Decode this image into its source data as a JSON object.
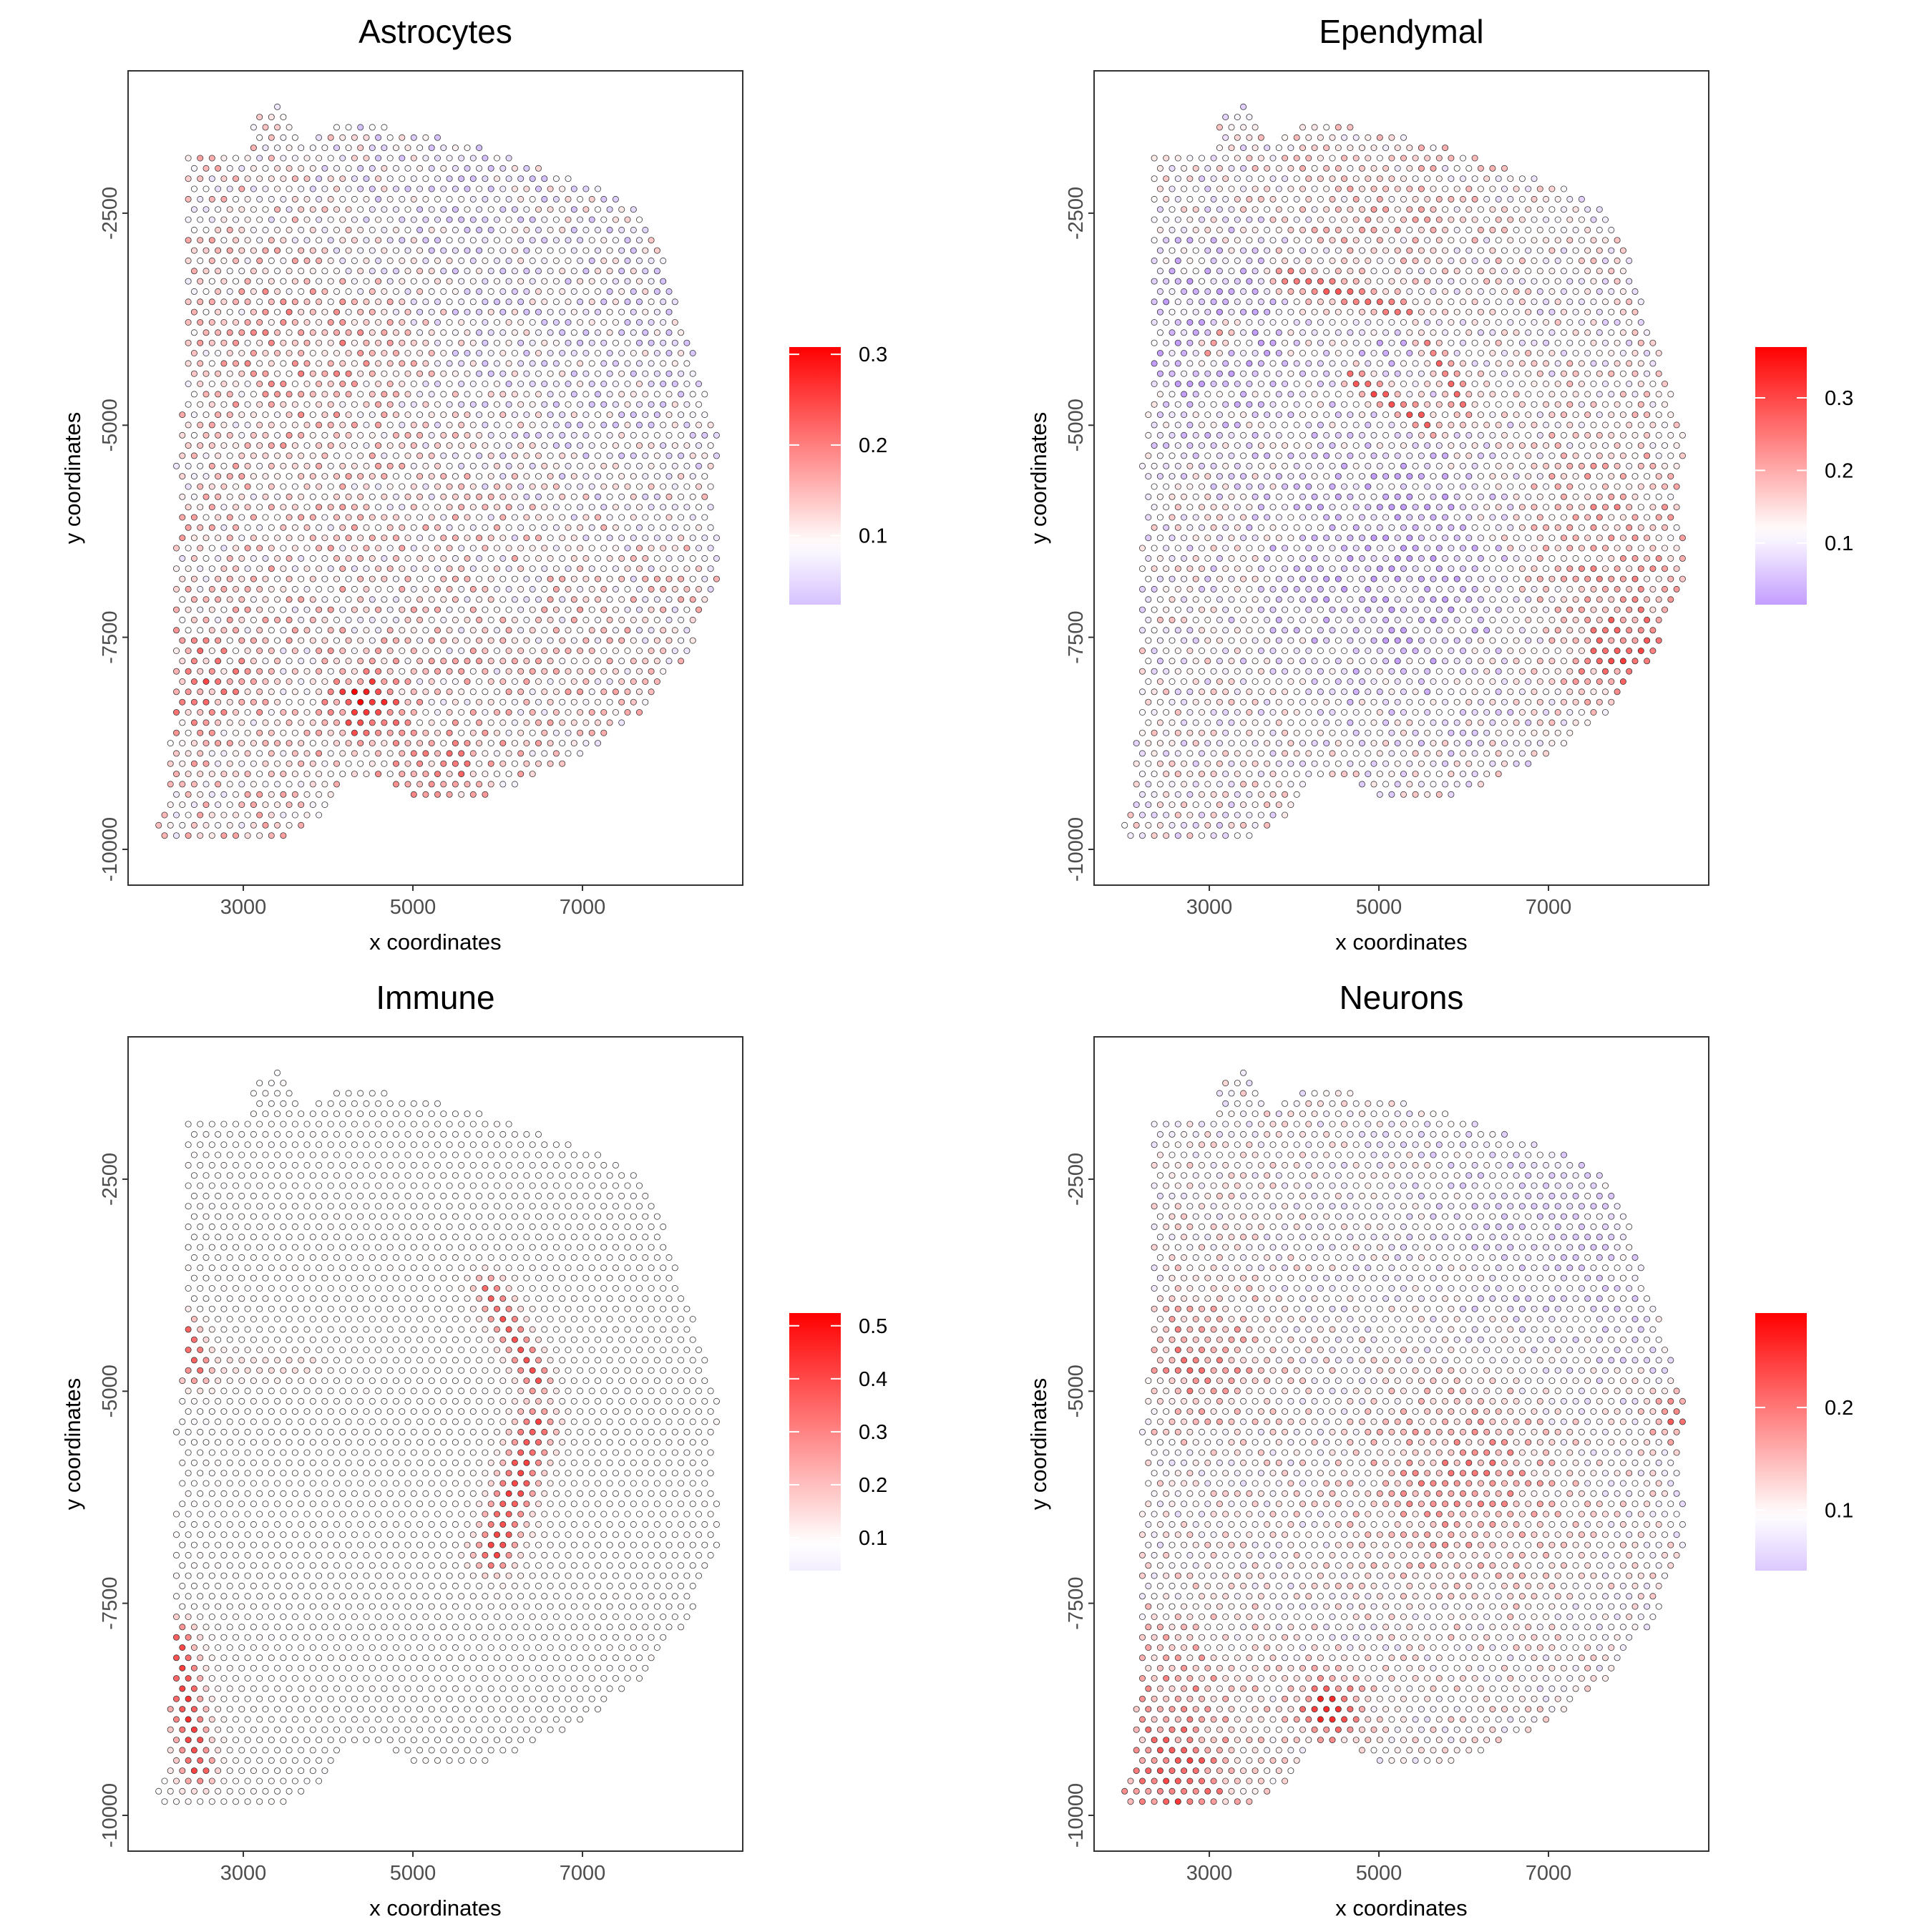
{
  "chart_data": {
    "type": "scatter",
    "shared": {
      "xlabel": "x coordinates",
      "ylabel": "y coordinates",
      "xlim": [
        1641,
        8890
      ],
      "ylim": [
        -10422,
        -822
      ],
      "x_ticks": [
        3000,
        5000,
        7000
      ],
      "y_ticks": [
        -2500,
        -5000,
        -7500,
        -10000
      ],
      "grid": false,
      "legend_placement": "right",
      "spot_lattice": {
        "dx": 140,
        "dy": 121,
        "first_row_y": -1246,
        "x_origin": 3401
      },
      "tissue_outline": [
        [
          2321,
          -1786
        ],
        [
          3051,
          -1786
        ],
        [
          3088,
          -1450
        ],
        [
          3380,
          -1195
        ],
        [
          3526,
          -1392
        ],
        [
          3635,
          -1669
        ],
        [
          3854,
          -1560
        ],
        [
          4219,
          -1450
        ],
        [
          4548,
          -1450
        ],
        [
          5022,
          -1560
        ],
        [
          5789,
          -1684
        ],
        [
          6154,
          -1815
        ],
        [
          6482,
          -1924
        ],
        [
          7066,
          -2143
        ],
        [
          7395,
          -2289
        ],
        [
          7577,
          -2398
        ],
        [
          7760,
          -2507
        ],
        [
          7979,
          -3018
        ],
        [
          8125,
          -3601
        ],
        [
          8271,
          -3929
        ],
        [
          8344,
          -4439
        ],
        [
          8490,
          -4731
        ],
        [
          8636,
          -5168
        ],
        [
          8563,
          -5606
        ],
        [
          8541,
          -5824
        ],
        [
          8599,
          -6262
        ],
        [
          8614,
          -6626
        ],
        [
          8599,
          -6918
        ],
        [
          8453,
          -7209
        ],
        [
          8307,
          -7574
        ],
        [
          8015,
          -8011
        ],
        [
          7833,
          -8303
        ],
        [
          7614,
          -8449
        ],
        [
          7322,
          -8667
        ],
        [
          7103,
          -8850
        ],
        [
          6665,
          -9068
        ],
        [
          6409,
          -9141
        ],
        [
          6008,
          -9323
        ],
        [
          5935,
          -9433
        ],
        [
          5241,
          -9433
        ],
        [
          4803,
          -9323
        ],
        [
          4584,
          -9141
        ],
        [
          4219,
          -9141
        ],
        [
          4146,
          -9287
        ],
        [
          4000,
          -9615
        ],
        [
          3635,
          -9761
        ],
        [
          3343,
          -9921
        ],
        [
          2467,
          -9921
        ],
        [
          2248,
          -9797
        ],
        [
          2102,
          -10016
        ],
        [
          1883,
          -9761
        ],
        [
          2066,
          -9469
        ],
        [
          2117,
          -8886
        ],
        [
          2190,
          -8376
        ],
        [
          2190,
          -6553
        ],
        [
          2248,
          -5824
        ],
        [
          2190,
          -5533
        ],
        [
          2263,
          -5095
        ],
        [
          2321,
          -4366
        ],
        [
          2321,
          -3419
        ],
        [
          2190,
          -3273
        ],
        [
          2321,
          -3200
        ]
      ],
      "colors": {
        "high": "#FF0000",
        "mid": "#FFFFFF",
        "spot_outline": "#333333",
        "panel_border": "#333333"
      }
    },
    "panels": [
      {
        "title": "Astrocytes",
        "legend_range": [
          0.024,
          0.308
        ],
        "legend_mid": 0.09,
        "legend_ticks": [
          0.1,
          0.2,
          0.3
        ],
        "low_color": "#D6C2FF",
        "base": 0.115,
        "noise": 0.06,
        "hotspots": [
          {
            "x": 4450,
            "y": -8300,
            "r": 260,
            "dv": 0.19
          },
          {
            "x": 2450,
            "y": -8050,
            "r": 380,
            "dv": 0.08
          },
          {
            "x": 3900,
            "y": -4000,
            "r": 700,
            "dv": 0.05
          },
          {
            "x": 5400,
            "y": -9200,
            "r": 400,
            "dv": 0.06
          },
          {
            "x": 7600,
            "y": -4200,
            "r": 1500,
            "dv": -0.05
          },
          {
            "x": 5200,
            "y": -2200,
            "r": 1200,
            "dv": -0.05
          }
        ],
        "ridges": []
      },
      {
        "title": "Ependymal",
        "legend_range": [
          0.015,
          0.37
        ],
        "legend_mid": 0.115,
        "legend_ticks": [
          0.1,
          0.2,
          0.3
        ],
        "low_color": "#C49EFF",
        "base": 0.12,
        "noise": 0.06,
        "hotspots": [
          {
            "x": 2900,
            "y": -3900,
            "r": 800,
            "dv": -0.08
          },
          {
            "x": 5300,
            "y": -6600,
            "r": 1100,
            "dv": -0.08
          },
          {
            "x": 5100,
            "y": -4000,
            "r": 500,
            "dv": -0.06
          },
          {
            "x": 7600,
            "y": -6300,
            "r": 900,
            "dv": 0.07
          },
          {
            "x": 7900,
            "y": -7700,
            "r": 450,
            "dv": 0.12
          },
          {
            "x": 5000,
            "y": -2600,
            "r": 900,
            "dv": 0.04
          }
        ],
        "ridges": [
          {
            "from": [
              3900,
              -3250
            ],
            "to": [
              5300,
              -3650
            ],
            "w": 110,
            "v": 0.29
          },
          {
            "from": [
              4700,
              -4450
            ],
            "to": [
              5600,
              -5000
            ],
            "w": 110,
            "v": 0.31
          },
          {
            "from": [
              5600,
              -4050
            ],
            "to": [
              6000,
              -4800
            ],
            "w": 110,
            "v": 0.28
          },
          {
            "from": [
              3000,
              -4100
            ],
            "to": [
              3200,
              -3900
            ],
            "w": 100,
            "v": 0.26
          }
        ]
      },
      {
        "title": "Immune",
        "legend_range": [
          0.038,
          0.524
        ],
        "legend_mid": 0.09,
        "legend_ticks": [
          0.1,
          0.2,
          0.3,
          0.4,
          0.5
        ],
        "low_color": "#F3EEFF",
        "base": 0.09,
        "noise": 0.012,
        "hotspots": [],
        "ridges": [
          {
            "from": [
              2300,
              -4300
            ],
            "to": [
              2450,
              -4750
            ],
            "w": 130,
            "v": 0.42
          },
          {
            "from": [
              5900,
              -3800
            ],
            "to": [
              6450,
              -4850
            ],
            "w": 130,
            "v": 0.4
          },
          {
            "from": [
              6450,
              -5400
            ],
            "to": [
              5950,
              -6900
            ],
            "w": 170,
            "v": 0.44
          },
          {
            "from": [
              2200,
              -7900
            ],
            "to": [
              2450,
              -9450
            ],
            "w": 150,
            "v": 0.45
          },
          {
            "from": [
              2700,
              -4700
            ],
            "to": [
              3800,
              -4700
            ],
            "w": 120,
            "v": 0.16
          }
        ]
      },
      {
        "title": "Neurons",
        "legend_range": [
          0.041,
          0.292
        ],
        "legend_mid": 0.095,
        "legend_ticks": [
          0.1,
          0.2
        ],
        "low_color": "#DCC8FF",
        "base": 0.1,
        "noise": 0.04,
        "hotspots": [
          {
            "x": 2900,
            "y": -4600,
            "r": 500,
            "dv": 0.08
          },
          {
            "x": 6000,
            "y": -6000,
            "r": 750,
            "dv": 0.08
          },
          {
            "x": 4400,
            "y": -8750,
            "r": 260,
            "dv": 0.15
          },
          {
            "x": 2600,
            "y": -9700,
            "r": 450,
            "dv": 0.12
          },
          {
            "x": 2600,
            "y": -8500,
            "r": 600,
            "dv": 0.06
          },
          {
            "x": 8550,
            "y": -5300,
            "r": 220,
            "dv": 0.13
          },
          {
            "x": 7200,
            "y": -3000,
            "r": 1500,
            "dv": -0.04
          }
        ],
        "ridges": []
      }
    ]
  }
}
